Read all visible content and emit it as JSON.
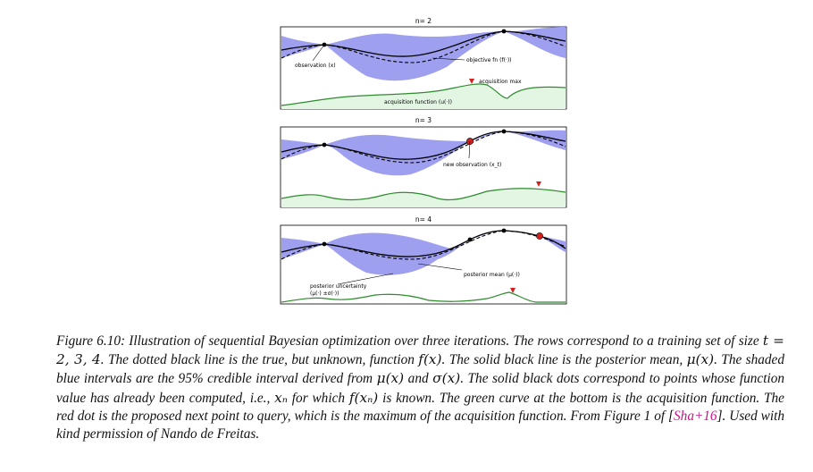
{
  "panels": [
    {
      "title": "n= 2",
      "labels": {
        "observation": "observation (x)",
        "objective": "objective fn (f(·))",
        "acq_max": "acquisition max",
        "acq_fn": "acquisition function (u(·))"
      }
    },
    {
      "title": "n= 3",
      "labels": {
        "new_obs": "new observation (x_t)"
      }
    },
    {
      "title": "n= 4",
      "labels": {
        "post_mean": "posterior mean (μ(·))",
        "post_unc_1": "posterior uncertainty",
        "post_unc_2": "(μ(·) ±σ(·))"
      }
    }
  ],
  "caption": {
    "p1": "Figure 6.10: Illustration of sequential Bayesian optimization over three iterations. The rows correspond to a training set of size ",
    "t_expr": "t = 2, 3, 4",
    "p2": ". The dotted black line is the true, but unknown, function ",
    "f_expr": "f(x)",
    "p3": ". The solid black line is the posterior mean, ",
    "mu_expr": "μ(x)",
    "p4": ". The shaded blue intervals are the 95% credible interval derived from ",
    "mu_expr2": "μ(x)",
    "p5": " and ",
    "sigma_expr": "σ(x)",
    "p6": ". The solid black dots correspond to points whose function value has already been computed, i.e., ",
    "xn_expr": "xₙ",
    "p7": " for which ",
    "fxn_expr": "f(xₙ)",
    "p8": " is known. The green curve at the bottom is the acquisition function. The red dot is the proposed next point to query, which is the maximum of the acquisition function. From Figure 1 of [",
    "ref": "Sha+16",
    "p9": "]. Used with kind permission of Nando de Freitas."
  },
  "colors": {
    "band": "#9f9ff0",
    "acq_line": "#2e8b2e",
    "acq_fill": "#e3f5e3",
    "red": "#d62020",
    "ref": "#c71585"
  }
}
